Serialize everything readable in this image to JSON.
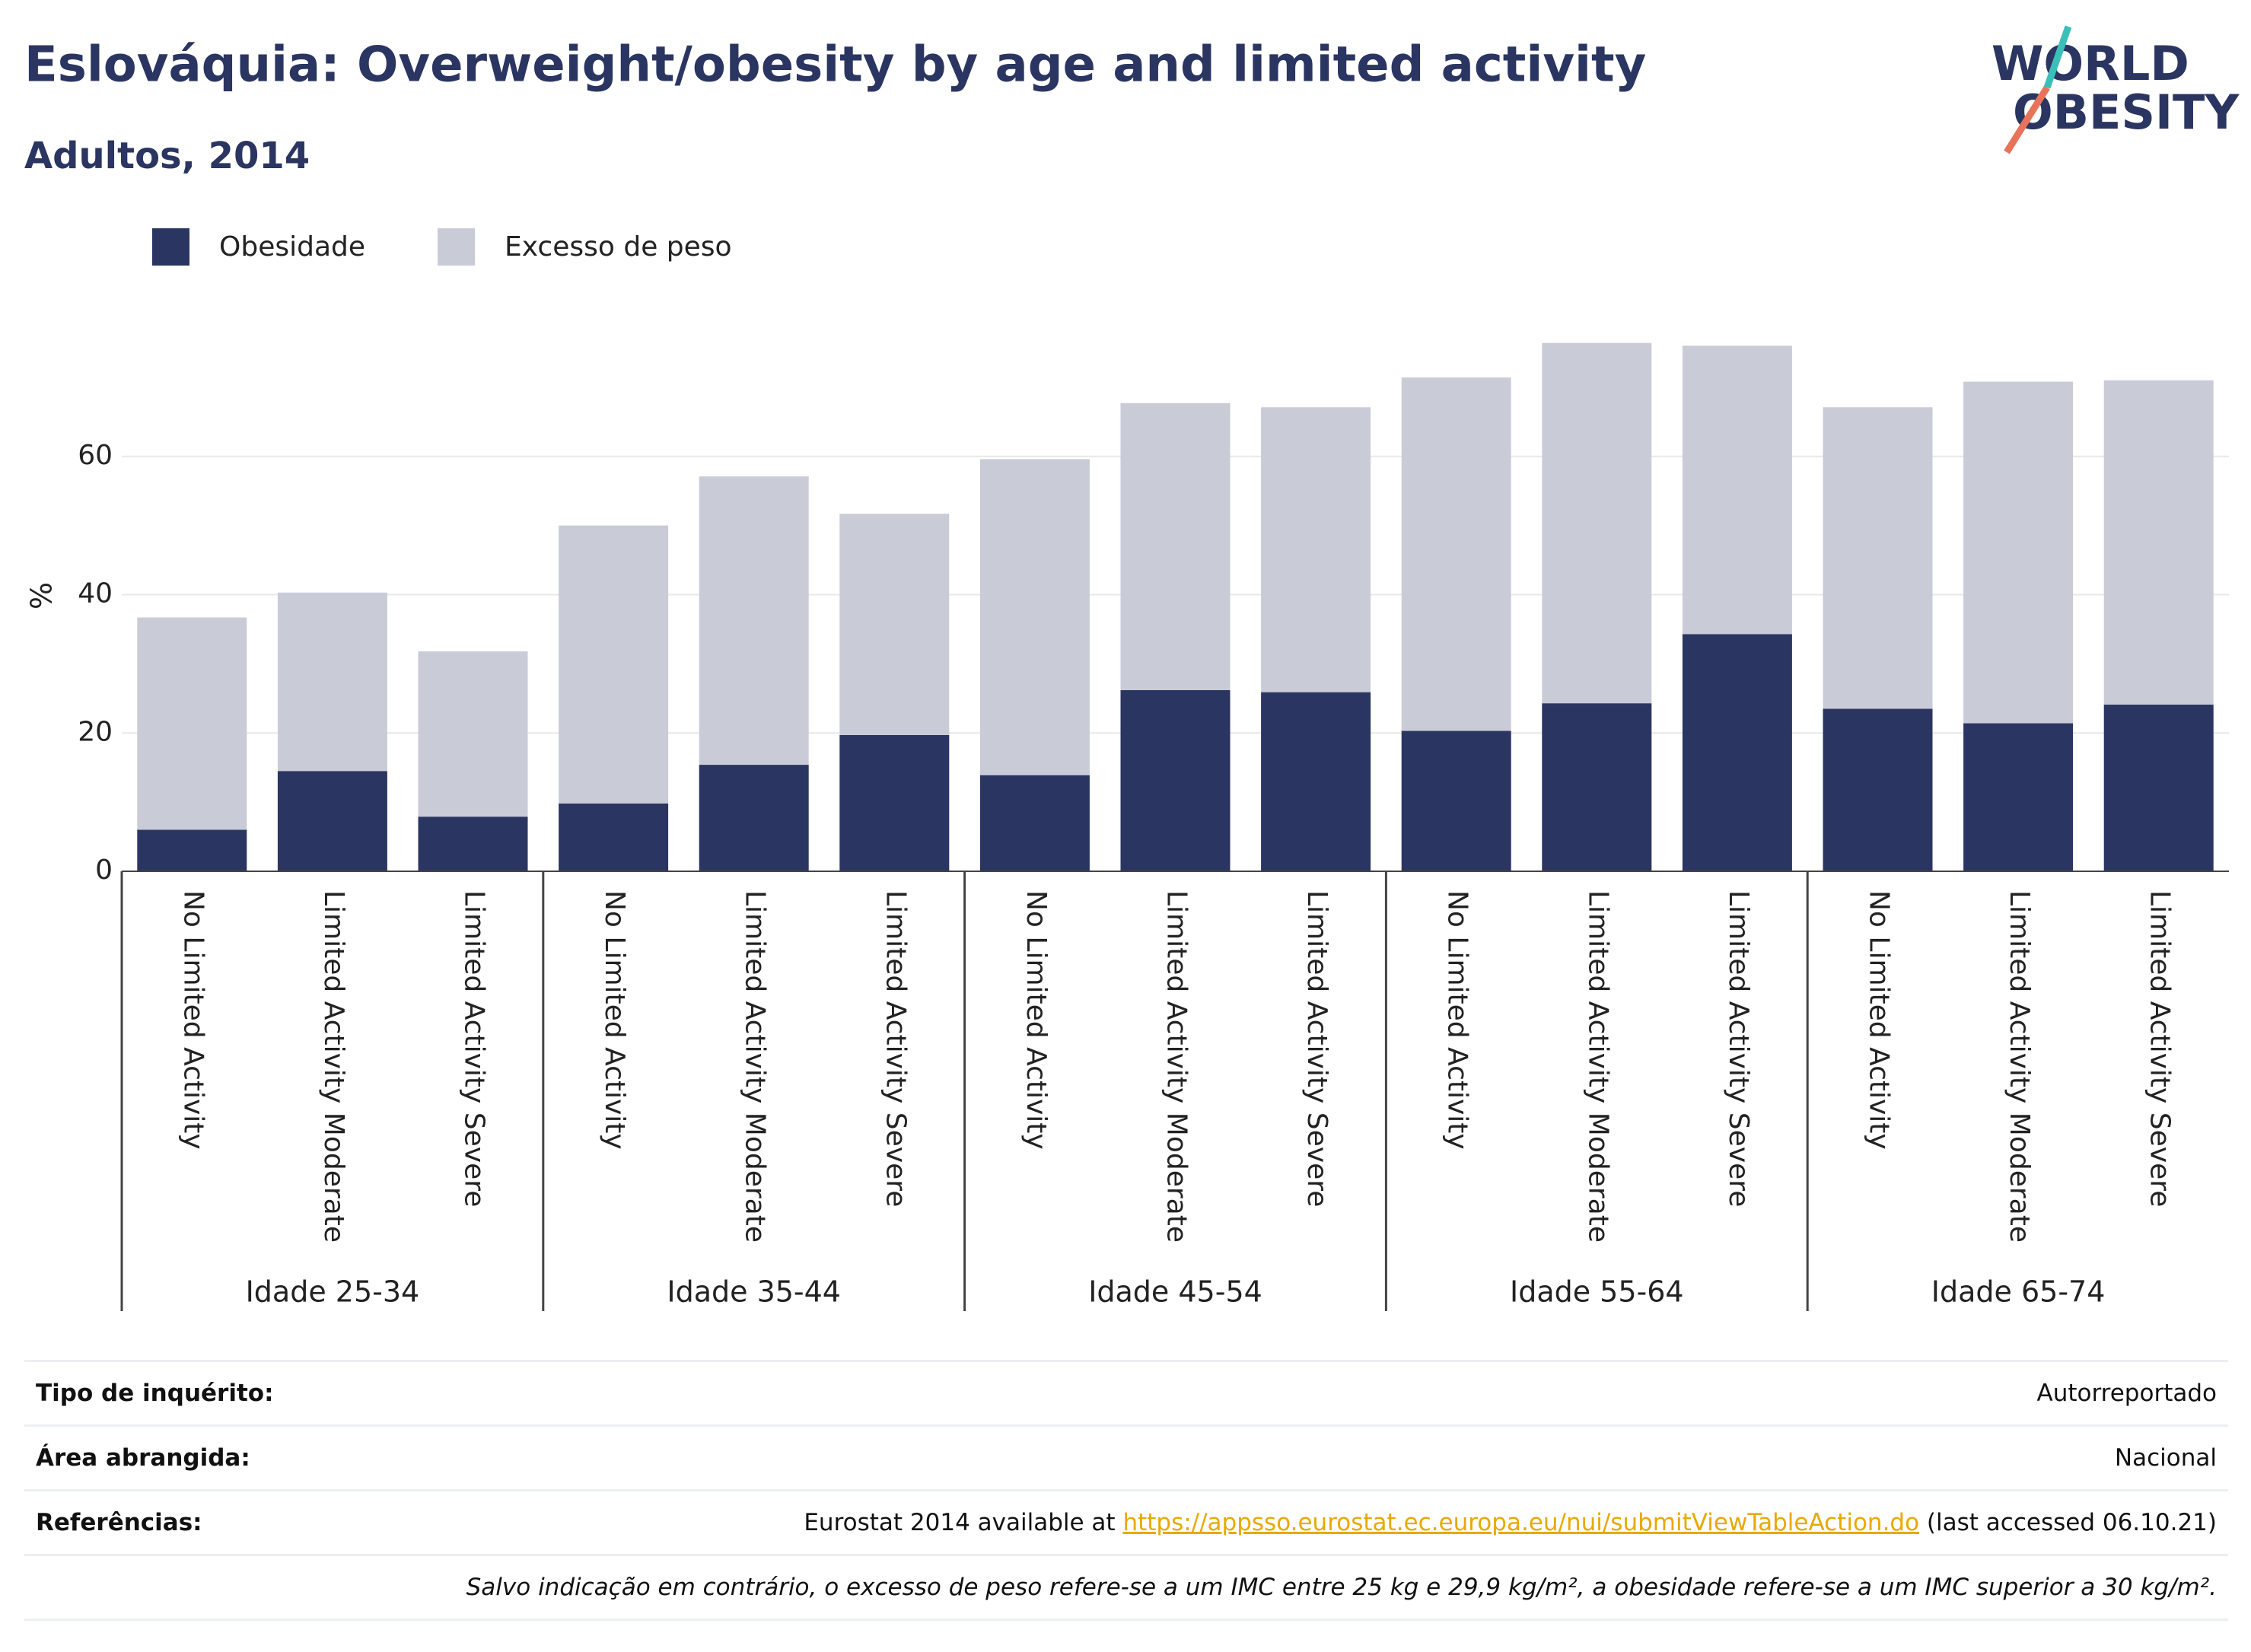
{
  "chart_data": {
    "type": "stacked_bar",
    "title": "Eslováquia: Overweight/obesity by age and limited activity",
    "subtitle": "Adultos, 2014",
    "ylabel": "%",
    "categories": [
      "No Limited Activity",
      "Limited Activity Moderate",
      "Limited Activity Severe",
      "No Limited Activity",
      "Limited Activity Moderate",
      "Limited Activity Severe",
      "No Limited Activity",
      "Limited Activity Moderate",
      "Limited Activity Severe",
      "No Limited Activity",
      "Limited Activity Moderate",
      "Limited Activity Severe",
      "No Limited Activity",
      "Limited Activity Moderate",
      "Limited Activity Severe"
    ],
    "groups": [
      "Idade 25-34",
      "Idade 35-44",
      "Idade 45-54",
      "Idade 55-64",
      "Idade 65-74"
    ],
    "series": [
      {
        "name": "Obesidade",
        "color": "#2b3561",
        "values": [
          6.0,
          14.5,
          7.9,
          9.8,
          15.4,
          19.7,
          13.9,
          26.2,
          25.9,
          20.3,
          24.3,
          34.3,
          23.5,
          21.4,
          24.1
        ]
      },
      {
        "name": "Excesso de peso",
        "color": "#c9cbd7",
        "values": [
          30.7,
          25.8,
          23.9,
          40.2,
          41.7,
          32.0,
          45.7,
          41.5,
          41.2,
          51.1,
          52.1,
          41.7,
          43.6,
          49.4,
          46.9
        ]
      }
    ],
    "ylim": [
      0,
      80
    ],
    "yticks": [
      0,
      20,
      40,
      60
    ],
    "grid": true,
    "legend": "top-left"
  },
  "logo": [
    "WORLD",
    "OBESITY"
  ],
  "footer": {
    "rows": [
      {
        "label": "Tipo de inquérito:",
        "value": "Autorreportado"
      },
      {
        "label": "Área abrangida:",
        "value": "Nacional"
      },
      {
        "label": "Referências:",
        "value": [
          "Eurostat 2014 available at ",
          "https://appsso.eurostat.ec.europa.eu/nui/submitViewTableAction.do",
          " (last accessed 06.10.21)"
        ]
      }
    ],
    "note": "Salvo indicação em contrário, o excesso de peso refere-se a um IMC entre 25 kg e 29,9 kg/m², a obesidade refere-se a um IMC superior a 30 kg/m²."
  }
}
